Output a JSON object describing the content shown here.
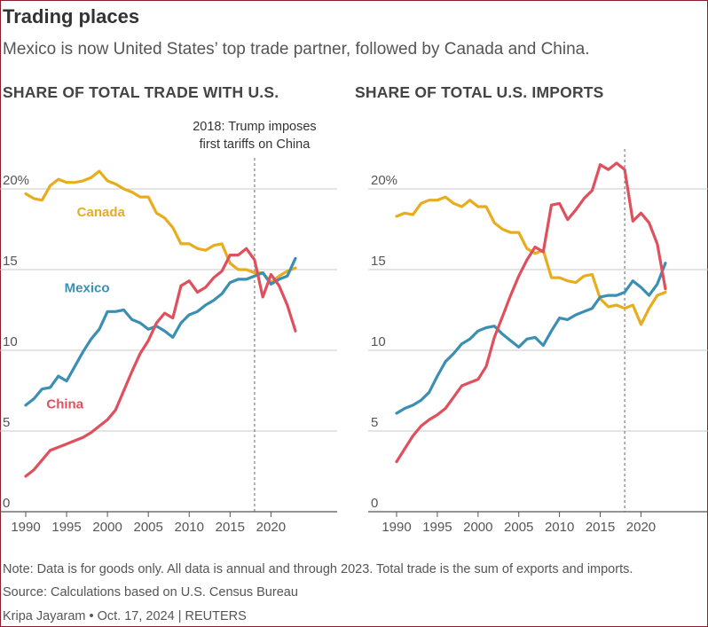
{
  "header": {
    "title": "Trading places",
    "subtitle": "Mexico is now United States’ top trade partner, followed by Canada and China."
  },
  "footer": {
    "note": "Note: Data is for goods only. All data is annual and through 2023. Total trade is the sum of exports and imports.",
    "source": "Source: Calculations based on U.S. Census Bureau",
    "credit": "Kripa Jayaram • Oct. 17, 2024 | REUTERS"
  },
  "colors": {
    "Canada": "#e8ad1c",
    "Mexico": "#3b8fb3",
    "China": "#e0505c",
    "grid": "#c8c8c8",
    "axis": "#555555"
  },
  "chart_data": [
    {
      "type": "line",
      "title": "SHARE OF TOTAL TRADE WITH U.S.",
      "xlim": [
        1990,
        2023
      ],
      "ylim": [
        0,
        20
      ],
      "yticks": [
        0,
        5,
        10,
        15,
        20
      ],
      "ytick_labels": [
        "0",
        "5",
        "10",
        "15",
        "20%"
      ],
      "xticks": [
        1990,
        1995,
        2000,
        2005,
        2010,
        2015,
        2020
      ],
      "grid": true,
      "annotation": {
        "x": 2018,
        "line1": "2018: Trump imposes",
        "line2": "first tariffs on China"
      },
      "x": [
        1990,
        1991,
        1992,
        1993,
        1994,
        1995,
        1996,
        1997,
        1998,
        1999,
        2000,
        2001,
        2002,
        2003,
        2004,
        2005,
        2006,
        2007,
        2008,
        2009,
        2010,
        2011,
        2012,
        2013,
        2014,
        2015,
        2016,
        2017,
        2018,
        2019,
        2020,
        2021,
        2022,
        2023
      ],
      "series": [
        {
          "name": "Canada",
          "label_x": 1999.2,
          "label_y": 18.3,
          "values": [
            19.7,
            19.4,
            19.3,
            20.2,
            20.6,
            20.4,
            20.4,
            20.5,
            20.7,
            21.1,
            20.5,
            20.3,
            20.0,
            19.8,
            19.5,
            19.5,
            18.5,
            18.2,
            17.6,
            16.6,
            16.6,
            16.3,
            16.2,
            16.5,
            16.6,
            15.4,
            15.0,
            15.0,
            14.8,
            14.8,
            14.2,
            14.6,
            14.9,
            15.1
          ]
        },
        {
          "name": "Mexico",
          "label_x": 1997.5,
          "label_y": 13.6,
          "values": [
            6.6,
            7.0,
            7.6,
            7.7,
            8.4,
            8.1,
            9.0,
            9.9,
            10.7,
            11.3,
            12.4,
            12.4,
            12.5,
            11.9,
            11.7,
            11.3,
            11.5,
            11.2,
            10.8,
            11.7,
            12.2,
            12.4,
            12.8,
            13.1,
            13.5,
            14.2,
            14.4,
            14.4,
            14.6,
            14.8,
            14.1,
            14.4,
            14.6,
            15.7
          ]
        },
        {
          "name": "China",
          "label_x": 1994.8,
          "label_y": 6.4,
          "values": [
            2.2,
            2.6,
            3.2,
            3.8,
            4.0,
            4.2,
            4.4,
            4.6,
            4.9,
            5.3,
            5.7,
            6.3,
            7.5,
            8.7,
            9.8,
            10.6,
            11.7,
            12.3,
            12.0,
            14.0,
            14.3,
            13.6,
            13.9,
            14.5,
            14.9,
            15.9,
            15.9,
            16.3,
            15.6,
            13.3,
            14.7,
            14.0,
            12.8,
            11.2
          ]
        }
      ]
    },
    {
      "type": "line",
      "title": "SHARE OF TOTAL U.S. IMPORTS",
      "xlim": [
        1990,
        2023
      ],
      "ylim": [
        0,
        20
      ],
      "yticks": [
        0,
        5,
        10,
        15,
        20
      ],
      "ytick_labels": [
        "0",
        "5",
        "10",
        "15",
        "20%"
      ],
      "xticks": [
        1990,
        1995,
        2000,
        2005,
        2010,
        2015,
        2020
      ],
      "grid": true,
      "annotation": {
        "x": 2018
      },
      "x": [
        1990,
        1991,
        1992,
        1993,
        1994,
        1995,
        1996,
        1997,
        1998,
        1999,
        2000,
        2001,
        2002,
        2003,
        2004,
        2005,
        2006,
        2007,
        2008,
        2009,
        2010,
        2011,
        2012,
        2013,
        2014,
        2015,
        2016,
        2017,
        2018,
        2019,
        2020,
        2021,
        2022,
        2023
      ],
      "series": [
        {
          "name": "Canada",
          "values": [
            18.3,
            18.5,
            18.4,
            19.1,
            19.3,
            19.3,
            19.5,
            19.1,
            18.9,
            19.3,
            18.9,
            18.9,
            17.9,
            17.5,
            17.3,
            17.3,
            16.3,
            16.0,
            16.2,
            14.5,
            14.5,
            14.3,
            14.2,
            14.6,
            14.7,
            13.2,
            12.7,
            12.8,
            12.6,
            12.8,
            11.6,
            12.6,
            13.4,
            13.6
          ]
        },
        {
          "name": "Mexico",
          "values": [
            6.1,
            6.4,
            6.6,
            6.9,
            7.4,
            8.4,
            9.3,
            9.8,
            10.4,
            10.7,
            11.2,
            11.4,
            11.5,
            11.0,
            10.6,
            10.2,
            10.7,
            10.8,
            10.3,
            11.2,
            12.0,
            11.9,
            12.2,
            12.4,
            12.6,
            13.3,
            13.4,
            13.4,
            13.6,
            14.3,
            13.9,
            13.4,
            14.1,
            15.4
          ]
        },
        {
          "name": "China",
          "values": [
            3.1,
            3.9,
            4.7,
            5.3,
            5.7,
            6.0,
            6.4,
            7.1,
            7.8,
            8.0,
            8.2,
            9.0,
            10.8,
            12.1,
            13.4,
            14.6,
            15.6,
            16.4,
            16.1,
            19.0,
            19.1,
            18.1,
            18.7,
            19.4,
            19.9,
            21.5,
            21.2,
            21.6,
            21.2,
            18.0,
            18.5,
            17.9,
            16.6,
            13.8
          ]
        }
      ]
    }
  ]
}
